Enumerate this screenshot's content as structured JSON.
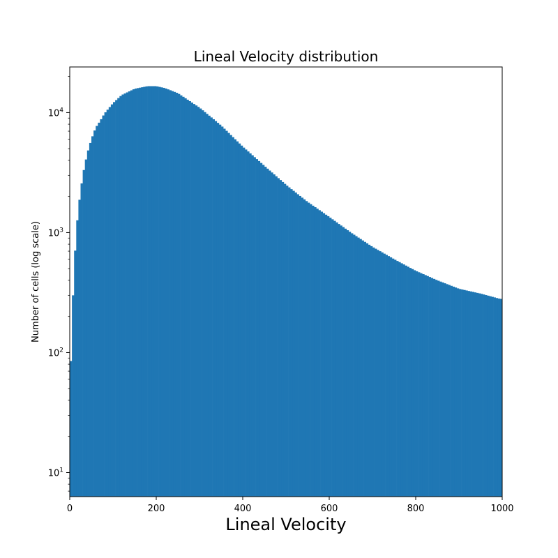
{
  "chart_data": {
    "type": "bar",
    "title": "Lineal Velocity distribution",
    "xlabel": "Lineal Velocity",
    "ylabel": "Number of cells (log scale)",
    "xlim": [
      0,
      1000
    ],
    "ylim": [
      6.3,
      24000
    ],
    "yscale": "log",
    "grid": false,
    "color": "#1f77b4",
    "x_ticks": [
      {
        "value": 0,
        "label": "0"
      },
      {
        "value": 200,
        "label": "200"
      },
      {
        "value": 400,
        "label": "400"
      },
      {
        "value": 600,
        "label": "600"
      },
      {
        "value": 800,
        "label": "800"
      },
      {
        "value": 1000,
        "label": "1000"
      }
    ],
    "y_ticks": [
      {
        "value": 10,
        "base": "10",
        "exp": "1"
      },
      {
        "value": 100,
        "base": "10",
        "exp": "2"
      },
      {
        "value": 1000,
        "base": "10",
        "exp": "3"
      },
      {
        "value": 10000,
        "base": "10",
        "exp": "4"
      }
    ],
    "bin_width": 5,
    "bins": [
      {
        "x": 0,
        "y": 40
      },
      {
        "x": 5,
        "y": 180
      },
      {
        "x": 10,
        "y": 500
      },
      {
        "x": 15,
        "y": 1000
      },
      {
        "x": 20,
        "y": 1600
      },
      {
        "x": 25,
        "y": 2200
      },
      {
        "x": 30,
        "y": 3000
      },
      {
        "x": 40,
        "y": 4500
      },
      {
        "x": 50,
        "y": 6000
      },
      {
        "x": 60,
        "y": 7500
      },
      {
        "x": 70,
        "y": 8500
      },
      {
        "x": 80,
        "y": 9800
      },
      {
        "x": 100,
        "y": 12000
      },
      {
        "x": 120,
        "y": 14000
      },
      {
        "x": 150,
        "y": 15800
      },
      {
        "x": 180,
        "y": 16600
      },
      {
        "x": 200,
        "y": 16600
      },
      {
        "x": 220,
        "y": 16000
      },
      {
        "x": 250,
        "y": 14500
      },
      {
        "x": 300,
        "y": 11000
      },
      {
        "x": 350,
        "y": 7800
      },
      {
        "x": 400,
        "y": 5200
      },
      {
        "x": 450,
        "y": 3600
      },
      {
        "x": 500,
        "y": 2500
      },
      {
        "x": 550,
        "y": 1800
      },
      {
        "x": 600,
        "y": 1350
      },
      {
        "x": 650,
        "y": 1000
      },
      {
        "x": 700,
        "y": 760
      },
      {
        "x": 750,
        "y": 600
      },
      {
        "x": 800,
        "y": 480
      },
      {
        "x": 850,
        "y": 400
      },
      {
        "x": 900,
        "y": 340
      },
      {
        "x": 950,
        "y": 310
      },
      {
        "x": 995,
        "y": 280
      }
    ]
  }
}
